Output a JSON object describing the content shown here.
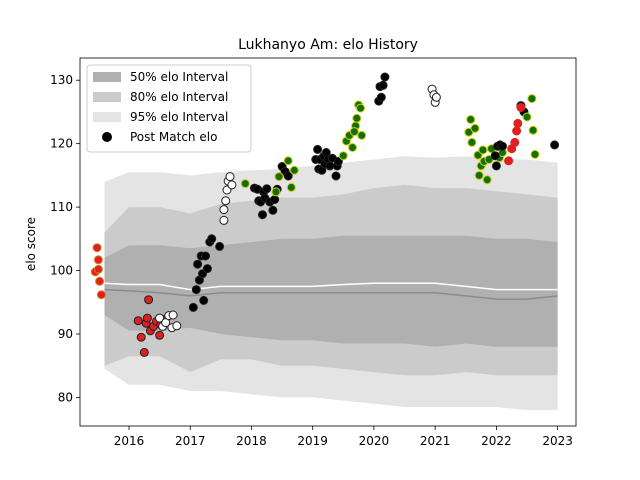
{
  "chart_data": {
    "type": "scatter",
    "title": "Lukhanyo Am: elo History",
    "xlabel": "",
    "ylabel": "elo score",
    "xlim": [
      2015.2,
      2023.3
    ],
    "ylim": [
      75.5,
      133.5
    ],
    "xticks": [
      2016,
      2017,
      2018,
      2019,
      2020,
      2021,
      2022,
      2023
    ],
    "yticks": [
      80,
      90,
      100,
      110,
      120,
      130
    ],
    "legend": {
      "position": "top-left",
      "entries": [
        "50% elo Interval",
        "80% elo Interval",
        "95% elo Interval",
        "Post Match elo"
      ]
    },
    "colors": {
      "band50": "#b0b0b0",
      "band80": "#cbcbcb",
      "band95": "#e4e4e4",
      "median": "#8c8c8c",
      "mean_line": "#ffffff",
      "white_point": "#ffffff",
      "black_point": "#000000",
      "red_point": "#e02020",
      "green_point": "#107010",
      "orange_edge": "#d08020",
      "yellow_edge": "#d8c800",
      "dark_edge": "#202020"
    },
    "bands": {
      "x": [
        2015.6,
        2016.0,
        2016.5,
        2017.0,
        2017.5,
        2018.0,
        2018.5,
        2019.0,
        2019.5,
        2020.0,
        2020.5,
        2021.0,
        2021.5,
        2022.0,
        2022.5,
        2023.0
      ],
      "p95_hi": [
        114.0,
        115.5,
        115.5,
        115.0,
        115.5,
        115.8,
        116.0,
        116.5,
        117.0,
        117.5,
        118.0,
        117.8,
        118.0,
        117.5,
        117.5,
        117.0
      ],
      "p80_hi": [
        106.0,
        110.0,
        110.0,
        109.0,
        110.5,
        111.0,
        111.5,
        111.5,
        112.0,
        113.0,
        113.5,
        113.0,
        113.0,
        112.5,
        112.0,
        111.5
      ],
      "p50_hi": [
        102.0,
        104.0,
        104.0,
        103.5,
        104.0,
        104.5,
        105.0,
        105.0,
        105.5,
        105.5,
        105.5,
        105.5,
        105.5,
        105.0,
        105.0,
        104.5
      ],
      "p50_lo": [
        93.0,
        90.5,
        90.5,
        91.0,
        90.0,
        89.5,
        89.0,
        89.0,
        88.5,
        88.5,
        88.5,
        88.0,
        88.5,
        88.0,
        88.0,
        88.0
      ],
      "p80_lo": [
        85.0,
        86.5,
        86.5,
        84.0,
        86.0,
        86.0,
        85.0,
        85.0,
        84.5,
        84.0,
        83.5,
        83.5,
        84.0,
        83.5,
        83.5,
        83.5
      ],
      "p95_lo": [
        84.5,
        82.0,
        82.0,
        81.0,
        81.0,
        80.5,
        80.0,
        80.0,
        79.5,
        79.0,
        78.5,
        78.5,
        78.5,
        78.5,
        78.0,
        78.0
      ],
      "median": [
        97.0,
        96.8,
        96.5,
        96.0,
        96.5,
        96.5,
        96.5,
        96.5,
        96.5,
        96.5,
        96.5,
        96.5,
        96.0,
        95.5,
        95.5,
        96.0
      ],
      "mean": [
        98.0,
        97.8,
        97.8,
        97.0,
        97.5,
        97.5,
        97.5,
        97.5,
        97.8,
        98.0,
        98.0,
        98.0,
        97.5,
        97.0,
        97.0,
        97.0
      ]
    },
    "series": [
      {
        "name": "orange-edged",
        "fill": "red_point",
        "edge": "orange_edge",
        "points": [
          [
            2015.45,
            99.8
          ],
          [
            2015.48,
            103.6
          ],
          [
            2015.5,
            101.7
          ],
          [
            2015.5,
            100.2
          ],
          [
            2015.52,
            98.3
          ],
          [
            2015.55,
            96.2
          ]
        ]
      },
      {
        "name": "red",
        "fill": "red_point",
        "edge": "dark_edge",
        "points": [
          [
            2016.15,
            92.1
          ],
          [
            2016.2,
            89.5
          ],
          [
            2016.25,
            87.1
          ],
          [
            2016.28,
            91.7
          ],
          [
            2016.3,
            92.5
          ],
          [
            2016.32,
            95.4
          ],
          [
            2016.35,
            90.5
          ],
          [
            2016.4,
            91.2
          ],
          [
            2016.45,
            92.0
          ],
          [
            2016.5,
            89.8
          ],
          [
            2016.52,
            91.5
          ],
          [
            2016.55,
            92.3
          ]
        ]
      },
      {
        "name": "white-early",
        "fill": "white_point",
        "edge": "dark_edge",
        "points": [
          [
            2016.5,
            92.5
          ],
          [
            2016.55,
            91.2
          ],
          [
            2016.6,
            91.8
          ],
          [
            2016.65,
            92.9
          ],
          [
            2016.7,
            91.0
          ],
          [
            2016.72,
            93.0
          ],
          [
            2016.78,
            91.3
          ]
        ]
      },
      {
        "name": "black-2017",
        "fill": "black_point",
        "edge": "dark_edge",
        "points": [
          [
            2017.05,
            94.2
          ],
          [
            2017.1,
            97.0
          ],
          [
            2017.12,
            101.0
          ],
          [
            2017.15,
            98.5
          ],
          [
            2017.18,
            102.3
          ],
          [
            2017.2,
            99.5
          ],
          [
            2017.22,
            95.3
          ],
          [
            2017.25,
            102.3
          ],
          [
            2017.28,
            100.3
          ],
          [
            2017.32,
            104.5
          ],
          [
            2017.35,
            105.0
          ],
          [
            2017.48,
            103.8
          ]
        ]
      },
      {
        "name": "white-2017",
        "fill": "white_point",
        "edge": "dark_edge",
        "points": [
          [
            2017.55,
            107.9
          ],
          [
            2017.55,
            109.6
          ],
          [
            2017.58,
            111.0
          ],
          [
            2017.6,
            112.7
          ],
          [
            2017.62,
            114.1
          ],
          [
            2017.65,
            114.8
          ],
          [
            2017.68,
            113.5
          ]
        ]
      },
      {
        "name": "black-2018",
        "fill": "black_point",
        "edge": "dark_edge",
        "points": [
          [
            2018.05,
            113.0
          ],
          [
            2018.1,
            112.8
          ],
          [
            2018.12,
            111.0
          ],
          [
            2018.15,
            110.8
          ],
          [
            2018.18,
            108.8
          ],
          [
            2018.2,
            112.4
          ],
          [
            2018.22,
            111.4
          ],
          [
            2018.25,
            112.9
          ],
          [
            2018.3,
            110.8
          ],
          [
            2018.35,
            109.5
          ],
          [
            2018.38,
            111.2
          ],
          [
            2018.42,
            112.8
          ],
          [
            2018.5,
            116.4
          ],
          [
            2018.55,
            115.6
          ],
          [
            2018.6,
            114.9
          ]
        ]
      },
      {
        "name": "green-2018",
        "fill": "green_point",
        "edge": "yellow_edge",
        "points": [
          [
            2017.9,
            113.7
          ],
          [
            2018.4,
            112.4
          ],
          [
            2018.45,
            114.8
          ],
          [
            2018.6,
            117.3
          ],
          [
            2018.65,
            113.1
          ],
          [
            2018.7,
            115.8
          ]
        ]
      },
      {
        "name": "black-2019",
        "fill": "black_point",
        "edge": "dark_edge",
        "points": [
          [
            2019.05,
            117.5
          ],
          [
            2019.08,
            119.1
          ],
          [
            2019.1,
            116.0
          ],
          [
            2019.12,
            117.5
          ],
          [
            2019.15,
            115.8
          ],
          [
            2019.18,
            118.0
          ],
          [
            2019.2,
            116.8
          ],
          [
            2019.22,
            118.6
          ],
          [
            2019.25,
            117.5
          ],
          [
            2019.28,
            116.5
          ],
          [
            2019.32,
            117.7
          ],
          [
            2019.38,
            114.9
          ],
          [
            2019.4,
            116.5
          ],
          [
            2019.42,
            117.2
          ]
        ]
      },
      {
        "name": "green-2019",
        "fill": "green_point",
        "edge": "yellow_edge",
        "points": [
          [
            2019.5,
            118.1
          ],
          [
            2019.55,
            120.4
          ],
          [
            2019.6,
            121.3
          ],
          [
            2019.65,
            119.4
          ],
          [
            2019.7,
            122.8
          ],
          [
            2019.72,
            124.0
          ],
          [
            2019.75,
            126.1
          ],
          [
            2019.78,
            125.6
          ],
          [
            2019.8,
            121.3
          ],
          [
            2019.68,
            121.9
          ]
        ]
      },
      {
        "name": "black-2020",
        "fill": "black_point",
        "edge": "dark_edge",
        "points": [
          [
            2020.08,
            126.7
          ],
          [
            2020.1,
            129.0
          ],
          [
            2020.12,
            127.3
          ],
          [
            2020.15,
            129.2
          ],
          [
            2020.18,
            130.5
          ]
        ]
      },
      {
        "name": "white-2021",
        "fill": "white_point",
        "edge": "dark_edge",
        "points": [
          [
            2020.95,
            128.6
          ],
          [
            2020.98,
            127.7
          ],
          [
            2021.0,
            126.5
          ],
          [
            2021.02,
            127.3
          ]
        ]
      },
      {
        "name": "green-2021",
        "fill": "green_point",
        "edge": "yellow_edge",
        "points": [
          [
            2021.55,
            121.8
          ],
          [
            2021.58,
            123.8
          ],
          [
            2021.6,
            120.2
          ],
          [
            2021.65,
            122.4
          ],
          [
            2021.7,
            118.2
          ],
          [
            2021.72,
            115.0
          ],
          [
            2021.75,
            116.5
          ],
          [
            2021.78,
            119.0
          ],
          [
            2021.8,
            117.2
          ],
          [
            2021.85,
            114.3
          ],
          [
            2021.88,
            117.5
          ],
          [
            2021.92,
            119.2
          ],
          [
            2022.05,
            117.8
          ],
          [
            2022.1,
            118.6
          ]
        ]
      },
      {
        "name": "black-2022",
        "fill": "black_point",
        "edge": "dark_edge",
        "points": [
          [
            2021.98,
            118.1
          ],
          [
            2022.0,
            116.5
          ],
          [
            2022.02,
            119.6
          ],
          [
            2022.06,
            119.8
          ],
          [
            2022.1,
            119.6
          ],
          [
            2022.4,
            126.0
          ],
          [
            2022.45,
            125.0
          ],
          [
            2022.95,
            119.8
          ]
        ]
      },
      {
        "name": "red-2022",
        "fill": "red_point",
        "edge": "red_point",
        "points": [
          [
            2022.2,
            117.3
          ],
          [
            2022.25,
            119.2
          ],
          [
            2022.3,
            120.2
          ],
          [
            2022.33,
            122.0
          ],
          [
            2022.35,
            123.2
          ],
          [
            2022.4,
            125.7
          ]
        ]
      },
      {
        "name": "green-2022",
        "fill": "green_point",
        "edge": "yellow_edge",
        "points": [
          [
            2022.5,
            124.2
          ],
          [
            2022.58,
            127.1
          ],
          [
            2022.6,
            122.1
          ],
          [
            2022.63,
            118.3
          ]
        ]
      }
    ]
  }
}
